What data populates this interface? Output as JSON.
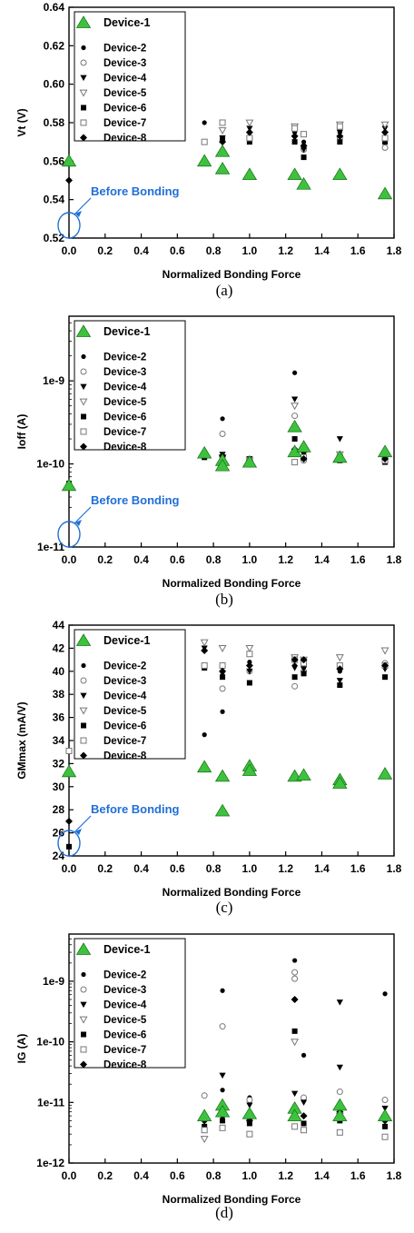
{
  "colors": {
    "device1": "#3ec23e",
    "device1_stroke": "#1d7a1d",
    "marker": "#000000",
    "annotation": "#1f6fd6",
    "axis": "#000000"
  },
  "legend": [
    "Device-1",
    "Device-2",
    "Device-3",
    "Device-4",
    "Device-5",
    "Device-6",
    "Device-7",
    "Device-8"
  ],
  "chart_data": [
    {
      "type": "scatter",
      "caption": "(a)",
      "xlabel": "Normalized Bonding Force",
      "ylabel": "Vt (V)",
      "xlim": [
        0,
        1.8
      ],
      "ylim": [
        0.52,
        0.64
      ],
      "yscale": "linear",
      "x_tick_labels": [
        "0.0",
        "0.2",
        "0.4",
        "0.6",
        "0.8",
        "1.0",
        "1.2",
        "1.4",
        "1.6",
        "1.8"
      ],
      "y_ticks": [
        0.52,
        0.54,
        0.56,
        0.58,
        0.6,
        0.62,
        0.64
      ],
      "y_tick_labels": [
        "0.52",
        "0.54",
        "0.56",
        "0.58",
        "0.60",
        "0.62",
        "0.64"
      ],
      "annotation": "Before Bonding",
      "legend_position": "top-left",
      "series": [
        {
          "name": "Device-1",
          "x": [
            0,
            0.75,
            0.85,
            0.85,
            1.0,
            1.25,
            1.3,
            1.5,
            1.75
          ],
          "y": [
            0.56,
            0.56,
            0.565,
            0.556,
            0.553,
            0.553,
            0.548,
            0.553,
            0.543
          ]
        },
        {
          "name": "Device-2",
          "x": [
            0.75,
            0.85,
            1.0,
            1.25,
            1.3,
            1.5,
            1.75
          ],
          "y": [
            0.58,
            0.57,
            0.575,
            0.575,
            0.57,
            0.575,
            0.575
          ]
        },
        {
          "name": "Device-3",
          "x": [
            0,
            0.85,
            1.0,
            1.25,
            1.3,
            1.5,
            1.75
          ],
          "y": [
            0.56,
            0.565,
            0.572,
            0.577,
            0.566,
            0.572,
            0.567
          ]
        },
        {
          "name": "Device-4",
          "x": [
            0.85,
            1.0,
            1.25,
            1.3,
            1.5,
            1.75
          ],
          "y": [
            0.572,
            0.577,
            0.572,
            0.566,
            0.575,
            0.577
          ]
        },
        {
          "name": "Device-5",
          "x": [
            0.85,
            1.0,
            1.25,
            1.5,
            1.75
          ],
          "y": [
            0.576,
            0.58,
            0.578,
            0.579,
            0.579
          ]
        },
        {
          "name": "Device-6",
          "x": [
            0.85,
            1.0,
            1.25,
            1.3,
            1.5,
            1.75
          ],
          "y": [
            0.572,
            0.57,
            0.57,
            0.562,
            0.57,
            0.57
          ]
        },
        {
          "name": "Device-7",
          "x": [
            0.75,
            0.85,
            1.0,
            1.25,
            1.3,
            1.5,
            1.75
          ],
          "y": [
            0.57,
            0.58,
            0.572,
            0.577,
            0.574,
            0.578,
            0.572
          ]
        },
        {
          "name": "Device-8",
          "x": [
            0,
            0.85,
            1.0,
            1.25,
            1.3,
            1.5,
            1.75
          ],
          "y": [
            0.55,
            0.57,
            0.575,
            0.573,
            0.568,
            0.573,
            0.575
          ]
        }
      ]
    },
    {
      "type": "scatter",
      "caption": "(b)",
      "xlabel": "Normalized Bonding Force",
      "ylabel": "Ioff (A)",
      "xlim": [
        0,
        1.8
      ],
      "ylim": [
        1e-11,
        6e-09
      ],
      "yscale": "log",
      "x_tick_labels": [
        "0.0",
        "0.2",
        "0.4",
        "0.6",
        "0.8",
        "1.0",
        "1.2",
        "1.4",
        "1.6",
        "1.8"
      ],
      "y_ticks": [
        1e-11,
        1e-10,
        1e-09
      ],
      "y_tick_labels": [
        "1e-11",
        "1e-10",
        "1e-9"
      ],
      "annotation": "Before Bonding",
      "legend_position": "top-left",
      "series": [
        {
          "name": "Device-1",
          "x": [
            0,
            0.75,
            0.85,
            0.85,
            1.0,
            1.25,
            1.25,
            1.3,
            1.5,
            1.75
          ],
          "y": [
            5.5e-11,
            1.35e-10,
            1.1e-10,
            9.5e-11,
            1.05e-10,
            2.8e-10,
            1.4e-10,
            1.6e-10,
            1.2e-10,
            1.4e-10
          ]
        },
        {
          "name": "Device-2",
          "x": [
            0,
            0.75,
            0.85,
            1.0,
            1.25,
            1.3,
            1.5,
            1.75
          ],
          "y": [
            6e-11,
            1.2e-10,
            3.5e-10,
            1.1e-10,
            1.25e-09,
            1.2e-10,
            1.1e-10,
            1.05e-10
          ]
        },
        {
          "name": "Device-3",
          "x": [
            0.85,
            1.0,
            1.25,
            1.3,
            1.5,
            1.75
          ],
          "y": [
            2.3e-10,
            1e-10,
            3.8e-10,
            1.1e-10,
            1.15e-10,
            1.1e-10
          ]
        },
        {
          "name": "Device-4",
          "x": [
            0.85,
            1.0,
            1.25,
            1.3,
            1.5,
            1.75
          ],
          "y": [
            1.3e-10,
            1.15e-10,
            6e-10,
            1.3e-10,
            2e-10,
            1.2e-10
          ]
        },
        {
          "name": "Device-5",
          "x": [
            0.85,
            1.0,
            1.25,
            1.5,
            1.75
          ],
          "y": [
            1.2e-10,
            1.1e-10,
            5e-10,
            1.3e-10,
            1.15e-10
          ]
        },
        {
          "name": "Device-6",
          "x": [
            0,
            0.75,
            0.85,
            1.0,
            1.25,
            1.5,
            1.75
          ],
          "y": [
            5.8e-11,
            1.2e-10,
            1.1e-10,
            1.05e-10,
            2e-10,
            1.1e-10,
            1.05e-10
          ]
        },
        {
          "name": "Device-7",
          "x": [
            0.85,
            1.0,
            1.25,
            1.3,
            1.5,
            1.75
          ],
          "y": [
            1.15e-10,
            1.05e-10,
            1.05e-10,
            1.2e-10,
            1.2e-10,
            1.1e-10
          ]
        },
        {
          "name": "Device-8",
          "x": [
            0,
            0.75,
            0.85,
            1.0,
            1.25,
            1.3,
            1.5,
            1.75
          ],
          "y": [
            5.5e-11,
            1.3e-10,
            1.25e-10,
            1.1e-10,
            1.5e-10,
            1.15e-10,
            1.2e-10,
            1.15e-10
          ]
        }
      ]
    },
    {
      "type": "scatter",
      "caption": "(c)",
      "xlabel": "Normalized Bonding Force",
      "ylabel": "GMmax (mA/V)",
      "xlim": [
        0,
        1.8
      ],
      "ylim": [
        24,
        44
      ],
      "yscale": "linear",
      "x_tick_labels": [
        "0.0",
        "0.2",
        "0.4",
        "0.6",
        "0.8",
        "1.0",
        "1.2",
        "1.4",
        "1.6",
        "1.8"
      ],
      "y_ticks": [
        24,
        26,
        28,
        30,
        32,
        34,
        36,
        38,
        40,
        42,
        44
      ],
      "y_tick_labels": [
        "24",
        "26",
        "28",
        "30",
        "32",
        "34",
        "36",
        "38",
        "40",
        "42",
        "44"
      ],
      "annotation": "Before Bonding",
      "legend_position": "top-left",
      "series": [
        {
          "name": "Device-1",
          "x": [
            0,
            0.75,
            0.85,
            0.85,
            1.0,
            1.0,
            1.25,
            1.3,
            1.5,
            1.5,
            1.75
          ],
          "y": [
            31.3,
            31.7,
            30.9,
            27.9,
            31.8,
            31.4,
            30.9,
            31.0,
            30.6,
            30.3,
            31.1
          ]
        },
        {
          "name": "Device-2",
          "x": [
            0.75,
            0.85,
            1.0,
            1.25,
            1.3,
            1.5,
            1.75
          ],
          "y": [
            34.5,
            36.5,
            40.8,
            40.5,
            40.5,
            40.0,
            40.3
          ]
        },
        {
          "name": "Device-3",
          "x": [
            0.85,
            1.0,
            1.25,
            1.3,
            1.5,
            1.75
          ],
          "y": [
            38.5,
            40.0,
            38.7,
            40.0,
            40.5,
            40.7
          ]
        },
        {
          "name": "Device-4",
          "x": [
            0.75,
            0.85,
            1.0,
            1.25,
            1.3,
            1.5,
            1.75
          ],
          "y": [
            42.0,
            39.8,
            40.0,
            40.3,
            40.2,
            39.2,
            40.2
          ]
        },
        {
          "name": "Device-5",
          "x": [
            0.75,
            0.85,
            1.0,
            1.25,
            1.3,
            1.5,
            1.75
          ],
          "y": [
            42.5,
            42.0,
            42.0,
            41.2,
            41.0,
            41.2,
            41.8
          ]
        },
        {
          "name": "Device-6",
          "x": [
            0,
            0.75,
            0.85,
            1.0,
            1.25,
            1.3,
            1.5,
            1.75
          ],
          "y": [
            24.8,
            40.3,
            39.5,
            39.0,
            39.5,
            39.8,
            38.8,
            39.5
          ]
        },
        {
          "name": "Device-7",
          "x": [
            0,
            0.75,
            0.85,
            1.0,
            1.25,
            1.3,
            1.5,
            1.75
          ],
          "y": [
            33.1,
            40.5,
            40.5,
            41.5,
            41.0,
            40.7,
            40.5,
            40.5
          ]
        },
        {
          "name": "Device-8",
          "x": [
            0,
            0.75,
            0.85,
            1.0,
            1.25,
            1.3,
            1.5,
            1.75
          ],
          "y": [
            27.0,
            41.8,
            40.0,
            40.5,
            41.0,
            41.0,
            40.2,
            40.5
          ]
        }
      ]
    },
    {
      "type": "scatter",
      "caption": "(d)",
      "xlabel": "Normalized Bonding Force",
      "ylabel": "IG (A)",
      "xlim": [
        0,
        1.8
      ],
      "ylim": [
        1e-12,
        6e-09
      ],
      "yscale": "log",
      "x_tick_labels": [
        "0.0",
        "0.2",
        "0.4",
        "0.6",
        "0.8",
        "1.0",
        "1.2",
        "1.4",
        "1.6",
        "1.8"
      ],
      "y_ticks": [
        1e-12,
        1e-11,
        1e-10,
        1e-09
      ],
      "y_tick_labels": [
        "1e-12",
        "1e-11",
        "1e-10",
        "1e-9"
      ],
      "legend_position": "top-left",
      "series": [
        {
          "name": "Device-1",
          "x": [
            0.75,
            0.85,
            0.85,
            1.0,
            1.25,
            1.25,
            1.5,
            1.5,
            1.75
          ],
          "y": [
            6e-12,
            9e-12,
            7e-12,
            6.5e-12,
            8e-12,
            6e-12,
            9e-12,
            6e-12,
            6e-12
          ]
        },
        {
          "name": "Device-2",
          "x": [
            0.75,
            0.85,
            0.85,
            1.0,
            1.25,
            1.25,
            1.3,
            1.5,
            1.75
          ],
          "y": [
            4e-12,
            7e-10,
            1.6e-11,
            1.2e-11,
            2.2e-09,
            5e-10,
            6e-11,
            8e-12,
            6.2e-10
          ]
        },
        {
          "name": "Device-3",
          "x": [
            0.75,
            0.85,
            1.0,
            1.25,
            1.25,
            1.3,
            1.5,
            1.75
          ],
          "y": [
            1.3e-11,
            1.8e-10,
            1.1e-11,
            1.4e-09,
            1.1e-09,
            1.2e-11,
            1.5e-11,
            1.1e-11
          ]
        },
        {
          "name": "Device-4",
          "x": [
            0.75,
            0.85,
            1.0,
            1.25,
            1.3,
            1.5,
            1.5,
            1.75
          ],
          "y": [
            5e-12,
            2.8e-11,
            9e-12,
            1.4e-11,
            1e-11,
            4.5e-10,
            3.8e-11,
            8e-12
          ]
        },
        {
          "name": "Device-5",
          "x": [
            0.75,
            0.85,
            1.0,
            1.25,
            1.5,
            1.75
          ],
          "y": [
            2.5e-12,
            6e-12,
            5e-12,
            1e-10,
            6e-12,
            5e-12
          ]
        },
        {
          "name": "Device-6",
          "x": [
            0.75,
            0.85,
            1.0,
            1.25,
            1.3,
            1.5,
            1.75
          ],
          "y": [
            4e-12,
            5e-12,
            4.5e-12,
            1.5e-10,
            4.5e-12,
            5e-12,
            4e-12
          ]
        },
        {
          "name": "Device-7",
          "x": [
            0.75,
            0.85,
            1.0,
            1.25,
            1.3,
            1.5,
            1.75
          ],
          "y": [
            3.5e-12,
            3.8e-12,
            3e-12,
            4e-12,
            3.5e-12,
            3.2e-12,
            2.7e-12
          ]
        },
        {
          "name": "Device-8",
          "x": [
            0.75,
            0.85,
            1.0,
            1.25,
            1.3,
            1.5,
            1.75
          ],
          "y": [
            5e-12,
            6e-12,
            5e-12,
            5e-10,
            6e-12,
            7e-12,
            5e-12
          ]
        }
      ]
    }
  ]
}
